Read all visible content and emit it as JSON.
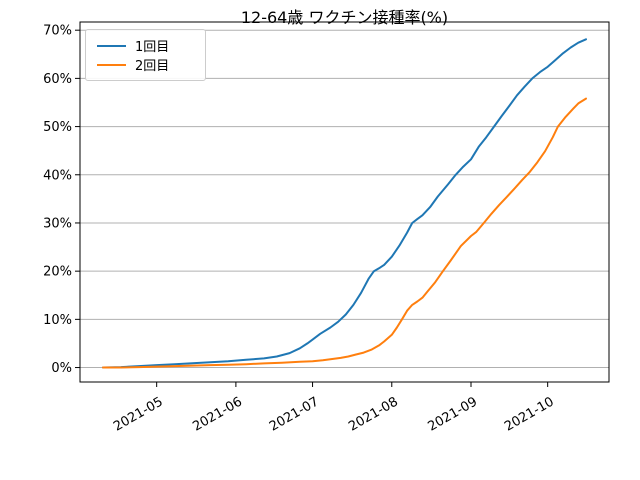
{
  "chart_data": {
    "type": "line",
    "title": "12-64歳 ワクチン接種率(%)",
    "grid": "horizontal",
    "grid_color": "#b0b0b0",
    "spine_color": "#000000",
    "legend_position": "upper-left",
    "x_axis": {
      "start": "2021-04-01",
      "end": "2021-10-25",
      "tick_dates": [
        "2021-05-01",
        "2021-06-01",
        "2021-07-01",
        "2021-08-01",
        "2021-09-01",
        "2021-10-01"
      ],
      "tick_labels": [
        "2021-05",
        "2021-06",
        "2021-07",
        "2021-08",
        "2021-09",
        "2021-10"
      ],
      "tick_rotation_deg": 30
    },
    "y_axis": {
      "min": -3,
      "max": 71.7,
      "tick_values": [
        0,
        10,
        20,
        30,
        40,
        50,
        60,
        70
      ],
      "tick_labels": [
        "0%",
        "10%",
        "20%",
        "30%",
        "40%",
        "50%",
        "60%",
        "70%"
      ]
    },
    "series": [
      {
        "name": "1回目",
        "color": "#1f77b4",
        "points": [
          [
            "2021-04-10",
            0.0
          ],
          [
            "2021-04-17",
            0.1
          ],
          [
            "2021-04-24",
            0.3
          ],
          [
            "2021-05-01",
            0.5
          ],
          [
            "2021-05-08",
            0.7
          ],
          [
            "2021-05-15",
            0.9
          ],
          [
            "2021-05-22",
            1.1
          ],
          [
            "2021-05-29",
            1.3
          ],
          [
            "2021-06-05",
            1.6
          ],
          [
            "2021-06-12",
            1.9
          ],
          [
            "2021-06-17",
            2.3
          ],
          [
            "2021-06-22",
            3.0
          ],
          [
            "2021-06-26",
            4.0
          ],
          [
            "2021-06-29",
            5.0
          ],
          [
            "2021-07-01",
            5.8
          ],
          [
            "2021-07-04",
            7.0
          ],
          [
            "2021-07-08",
            8.3
          ],
          [
            "2021-07-11",
            9.5
          ],
          [
            "2021-07-14",
            11.0
          ],
          [
            "2021-07-17",
            13.0
          ],
          [
            "2021-07-20",
            15.5
          ],
          [
            "2021-07-23",
            18.5
          ],
          [
            "2021-07-25",
            20.0
          ],
          [
            "2021-07-27",
            20.6
          ],
          [
            "2021-07-29",
            21.3
          ],
          [
            "2021-08-01",
            23.0
          ],
          [
            "2021-08-04",
            25.3
          ],
          [
            "2021-08-07",
            28.0
          ],
          [
            "2021-08-09",
            30.0
          ],
          [
            "2021-08-11",
            30.8
          ],
          [
            "2021-08-13",
            31.6
          ],
          [
            "2021-08-16",
            33.3
          ],
          [
            "2021-08-19",
            35.5
          ],
          [
            "2021-08-23",
            38.0
          ],
          [
            "2021-08-26",
            40.0
          ],
          [
            "2021-08-29",
            41.7
          ],
          [
            "2021-09-01",
            43.2
          ],
          [
            "2021-09-04",
            45.8
          ],
          [
            "2021-09-07",
            47.8
          ],
          [
            "2021-09-10",
            50.0
          ],
          [
            "2021-09-13",
            52.2
          ],
          [
            "2021-09-16",
            54.3
          ],
          [
            "2021-09-19",
            56.5
          ],
          [
            "2021-09-22",
            58.3
          ],
          [
            "2021-09-25",
            60.0
          ],
          [
            "2021-09-28",
            61.3
          ],
          [
            "2021-10-01",
            62.4
          ],
          [
            "2021-10-04",
            63.8
          ],
          [
            "2021-10-07",
            65.2
          ],
          [
            "2021-10-10",
            66.4
          ],
          [
            "2021-10-13",
            67.4
          ],
          [
            "2021-10-16",
            68.1
          ]
        ]
      },
      {
        "name": "2回目",
        "color": "#ff7f0e",
        "points": [
          [
            "2021-04-10",
            0.0
          ],
          [
            "2021-04-17",
            0.0
          ],
          [
            "2021-04-24",
            0.1
          ],
          [
            "2021-05-01",
            0.2
          ],
          [
            "2021-05-08",
            0.3
          ],
          [
            "2021-05-15",
            0.4
          ],
          [
            "2021-05-22",
            0.5
          ],
          [
            "2021-05-29",
            0.6
          ],
          [
            "2021-06-05",
            0.7
          ],
          [
            "2021-06-12",
            0.85
          ],
          [
            "2021-06-19",
            1.0
          ],
          [
            "2021-06-26",
            1.2
          ],
          [
            "2021-07-01",
            1.3
          ],
          [
            "2021-07-05",
            1.5
          ],
          [
            "2021-07-08",
            1.7
          ],
          [
            "2021-07-12",
            2.0
          ],
          [
            "2021-07-15",
            2.3
          ],
          [
            "2021-07-18",
            2.7
          ],
          [
            "2021-07-21",
            3.1
          ],
          [
            "2021-07-24",
            3.7
          ],
          [
            "2021-07-27",
            4.6
          ],
          [
            "2021-07-29",
            5.4
          ],
          [
            "2021-08-01",
            6.8
          ],
          [
            "2021-08-03",
            8.3
          ],
          [
            "2021-08-05",
            10.0
          ],
          [
            "2021-08-07",
            11.8
          ],
          [
            "2021-08-09",
            13.0
          ],
          [
            "2021-08-11",
            13.7
          ],
          [
            "2021-08-13",
            14.5
          ],
          [
            "2021-08-15",
            15.8
          ],
          [
            "2021-08-18",
            17.7
          ],
          [
            "2021-08-21",
            20.0
          ],
          [
            "2021-08-24",
            22.2
          ],
          [
            "2021-08-28",
            25.2
          ],
          [
            "2021-09-01",
            27.3
          ],
          [
            "2021-09-03",
            28.1
          ],
          [
            "2021-09-06",
            30.0
          ],
          [
            "2021-09-09",
            31.9
          ],
          [
            "2021-09-12",
            33.7
          ],
          [
            "2021-09-15",
            35.4
          ],
          [
            "2021-09-18",
            37.1
          ],
          [
            "2021-09-21",
            38.9
          ],
          [
            "2021-09-24",
            40.6
          ],
          [
            "2021-09-27",
            42.6
          ],
          [
            "2021-09-30",
            44.9
          ],
          [
            "2021-10-03",
            47.8
          ],
          [
            "2021-10-05",
            50.0
          ],
          [
            "2021-10-08",
            52.0
          ],
          [
            "2021-10-11",
            53.7
          ],
          [
            "2021-10-13",
            54.8
          ],
          [
            "2021-10-16",
            55.8
          ]
        ]
      }
    ]
  }
}
